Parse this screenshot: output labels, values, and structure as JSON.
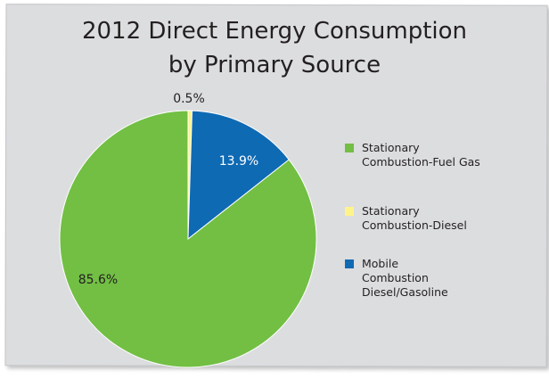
{
  "chart_data": {
    "type": "pie",
    "title_line1": "2012 Direct Energy Consumption",
    "title_line2": "by Primary Source",
    "slices": [
      {
        "legend": "Stationary\nCombustion-Fuel Gas",
        "value": 85.6,
        "label": "85.6%",
        "color": "#72bf44",
        "label_color": "#231f20"
      },
      {
        "legend": "Stationary\nCombustion-Diesel",
        "value": 0.5,
        "label": "0.5%",
        "color": "#fdf489",
        "label_color": "#231f20"
      },
      {
        "legend": "Mobile\nCombustion\nDiesel/Gasoline",
        "value": 13.9,
        "label": "13.9%",
        "color": "#0f6ab4",
        "label_color": "#ffffff"
      }
    ],
    "legend_placement": "right"
  }
}
